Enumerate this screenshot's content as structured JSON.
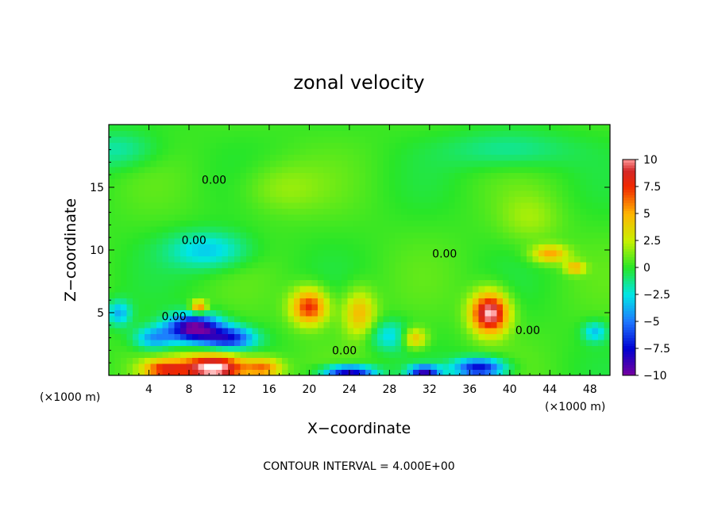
{
  "chart_data": {
    "type": "heatmap",
    "title": "zonal velocity",
    "xlabel": "X−coordinate",
    "ylabel": "Z−coordinate",
    "x_unit": "(×1000 m)",
    "z_unit": "(×1000 m)",
    "xlim": [
      0,
      50
    ],
    "ylim": [
      0,
      20
    ],
    "x_ticks": [
      4,
      8,
      12,
      16,
      20,
      24,
      28,
      32,
      36,
      40,
      44,
      48
    ],
    "y_ticks": [
      5,
      10,
      15
    ],
    "colorbar": {
      "vmin": -10,
      "vmax": 10,
      "ticks": [
        10,
        7.5,
        5,
        2.5,
        0,
        -2.5,
        -5,
        -7.5,
        -10
      ],
      "tick_labels": [
        "10",
        "7.5",
        "5",
        "2.5",
        "0",
        "−2.5",
        "−5",
        "−7.5",
        "−10"
      ]
    },
    "contour_labels": [
      {
        "text": "0.00",
        "x": 10.5,
        "y": 15.6
      },
      {
        "text": "0.00",
        "x": 8.5,
        "y": 10.8
      },
      {
        "text": "0.00",
        "x": 6.5,
        "y": 4.7
      },
      {
        "text": "0.00",
        "x": 23.5,
        "y": 2.0
      },
      {
        "text": "0.00",
        "x": 33.5,
        "y": 9.7
      },
      {
        "text": "0.00",
        "x": 41.8,
        "y": 3.6
      }
    ],
    "features": [
      {
        "x": 10.5,
        "y": 0.6,
        "value": 11.5,
        "sx": 3.2,
        "sz": 1.1
      },
      {
        "x": 5.5,
        "y": 0.5,
        "value": 6.5,
        "sx": 2.2,
        "sz": 0.8
      },
      {
        "x": 15.5,
        "y": 0.6,
        "value": 5.5,
        "sx": 1.8,
        "sz": 0.8
      },
      {
        "x": 8.5,
        "y": 3.8,
        "value": -10.5,
        "sx": 2.6,
        "sz": 1.1
      },
      {
        "x": 12.0,
        "y": 3.0,
        "value": -7.0,
        "sx": 2.5,
        "sz": 0.9
      },
      {
        "x": 4.5,
        "y": 3.0,
        "value": -4.5,
        "sx": 2.0,
        "sz": 0.9
      },
      {
        "x": 1.0,
        "y": 5.0,
        "value": -4.0,
        "sx": 1.2,
        "sz": 1.0
      },
      {
        "x": 9.0,
        "y": 5.5,
        "value": 6.5,
        "sx": 0.8,
        "sz": 0.5
      },
      {
        "x": 20.0,
        "y": 5.5,
        "value": 7.5,
        "sx": 1.8,
        "sz": 1.4
      },
      {
        "x": 25.0,
        "y": 5.0,
        "value": 4.5,
        "sx": 1.6,
        "sz": 1.8
      },
      {
        "x": 24.0,
        "y": 0.3,
        "value": -9.0,
        "sx": 2.5,
        "sz": 0.5
      },
      {
        "x": 31.5,
        "y": 0.3,
        "value": -8.5,
        "sx": 1.5,
        "sz": 0.5
      },
      {
        "x": 37.0,
        "y": 0.6,
        "value": -8.0,
        "sx": 2.5,
        "sz": 0.8
      },
      {
        "x": 30.5,
        "y": 3.0,
        "value": 4.5,
        "sx": 1.2,
        "sz": 0.8
      },
      {
        "x": 38.0,
        "y": 5.0,
        "value": 10.5,
        "sx": 1.8,
        "sz": 1.6
      },
      {
        "x": 44.0,
        "y": 9.7,
        "value": 5.0,
        "sx": 1.8,
        "sz": 0.7
      },
      {
        "x": 46.5,
        "y": 8.6,
        "value": 4.5,
        "sx": 1.0,
        "sz": 0.5
      },
      {
        "x": 10.0,
        "y": 10.0,
        "value": -3.5,
        "sx": 4.0,
        "sz": 1.5
      },
      {
        "x": 1.0,
        "y": 18.0,
        "value": -2.0,
        "sx": 4.0,
        "sz": 1.5
      },
      {
        "x": 40.0,
        "y": 18.0,
        "value": -2.0,
        "sx": 6.0,
        "sz": 1.5
      },
      {
        "x": 17.0,
        "y": 15.0,
        "value": 1.5,
        "sx": 4.0,
        "sz": 2.0
      },
      {
        "x": 42.0,
        "y": 12.5,
        "value": 1.5,
        "sx": 3.0,
        "sz": 2.0
      },
      {
        "x": 28.0,
        "y": 3.2,
        "value": -3.0,
        "sx": 2.0,
        "sz": 1.2
      },
      {
        "x": 48.5,
        "y": 3.5,
        "value": -3.5,
        "sx": 1.2,
        "sz": 0.8
      }
    ],
    "grid": false
  },
  "footer": "CONTOUR INTERVAL = 4.000E+00"
}
